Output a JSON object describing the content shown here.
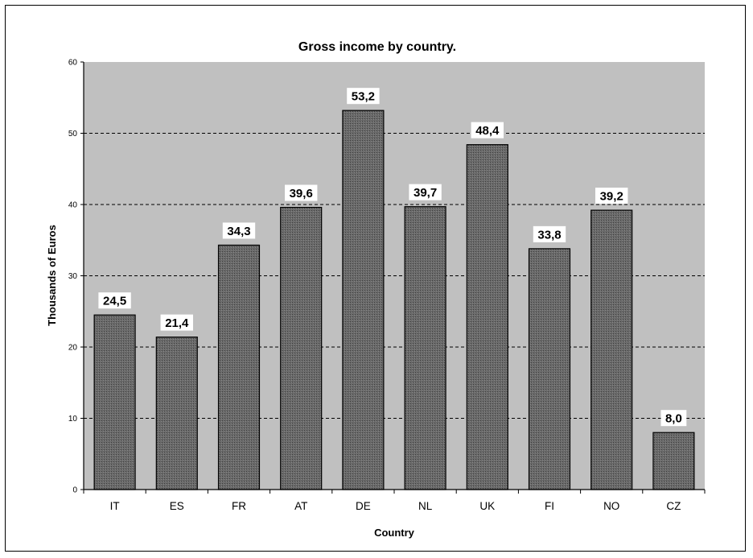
{
  "chart_data": {
    "type": "bar",
    "title": "Gross income by country.",
    "xlabel": "Country",
    "ylabel": "Thousands of Euros",
    "categories": [
      "IT",
      "ES",
      "FR",
      "AT",
      "DE",
      "NL",
      "UK",
      "FI",
      "NO",
      "CZ"
    ],
    "values": [
      24.5,
      21.4,
      34.3,
      39.6,
      53.2,
      39.7,
      48.4,
      33.8,
      39.2,
      8.0
    ],
    "value_labels": [
      "24,5",
      "21,4",
      "34,3",
      "39,6",
      "53,2",
      "39,7",
      "48,4",
      "33,8",
      "39,2",
      "8,0"
    ],
    "ylim": [
      0,
      60
    ],
    "yticks": [
      0,
      10,
      20,
      30,
      40,
      50,
      60
    ],
    "grid": true,
    "legend": "none",
    "colors": {
      "plot_background": "#c0c0c0",
      "bar_fill": "#606060",
      "bar_stroke": "#000000",
      "gridline": "#000000"
    }
  }
}
